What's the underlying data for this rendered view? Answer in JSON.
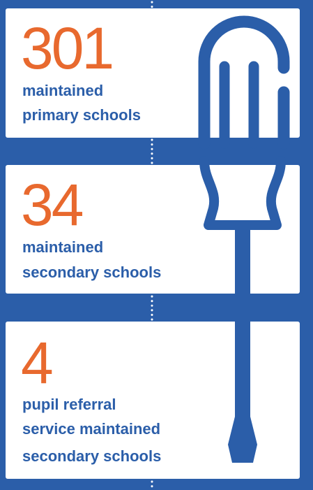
{
  "items": [
    {
      "number": 301,
      "lines": [
        "maintained",
        "primary schools"
      ]
    },
    {
      "number": 34,
      "lines": [
        "maintained",
        "secondary schools"
      ]
    },
    {
      "number": 4,
      "lines": [
        "pupil referral",
        "service maintained",
        "secondary schools"
      ]
    }
  ]
}
